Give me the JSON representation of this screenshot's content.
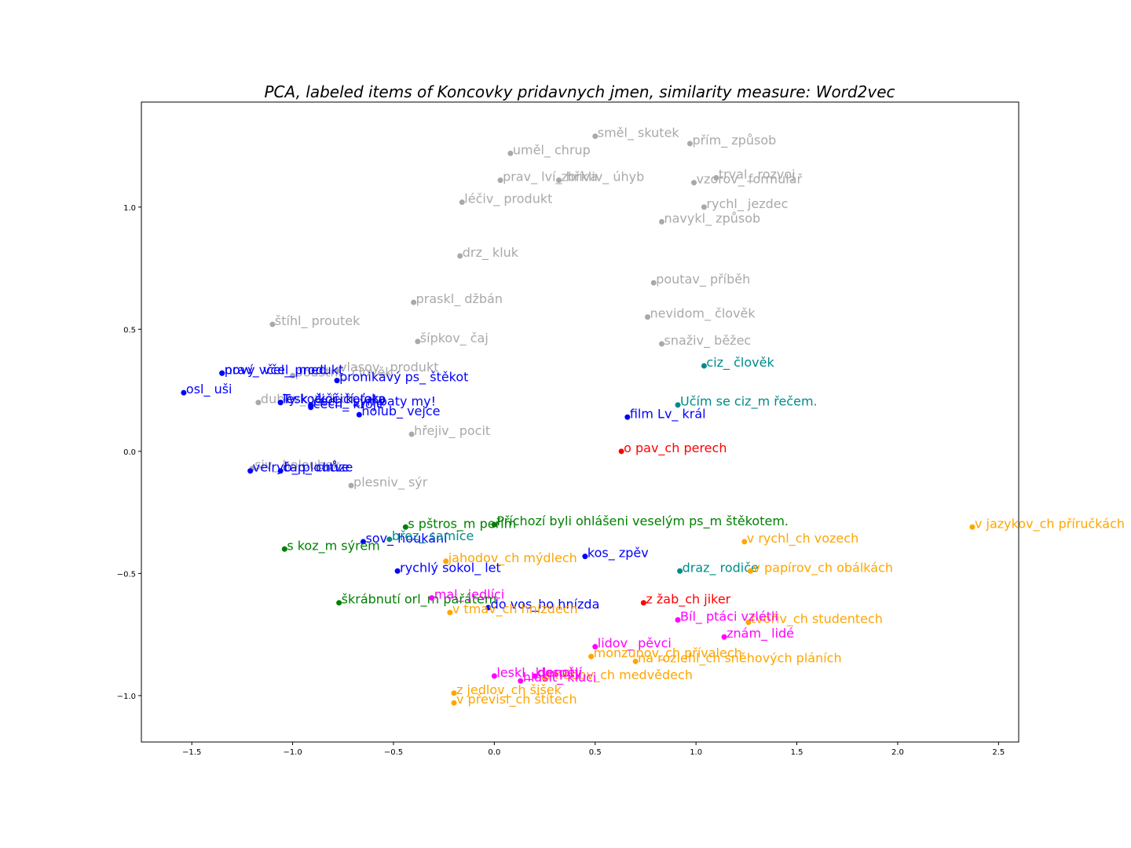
{
  "chart_data": {
    "type": "scatter",
    "title": "PCA, labeled items of Koncovky pridavnych jmen, similarity measure: Word2vec",
    "xlabel": "",
    "ylabel": "",
    "xlim": [
      -1.75,
      2.6
    ],
    "ylim": [
      -1.19,
      1.43
    ],
    "xticks": [
      -1.5,
      -1.0,
      -0.5,
      0.0,
      0.5,
      1.0,
      1.5,
      2.0,
      2.5
    ],
    "xtick_labels": [
      "−1.5",
      "−1.0",
      "−0.5",
      "0.0",
      "0.5",
      "1.0",
      "1.5",
      "2.0",
      "2.5"
    ],
    "yticks": [
      -1.0,
      -0.5,
      0.0,
      0.5,
      1.0
    ],
    "ytick_labels": [
      "−1.0",
      "−0.5",
      "0.0",
      "0.5",
      "1.0"
    ],
    "grid": false,
    "colors": {
      "gray": "#a9a9a9",
      "blue": "#0000ff",
      "teal": "#008b8b",
      "red": "#ff0000",
      "green": "#008000",
      "orange": "#ffa500",
      "magenta": "#ff00ff"
    },
    "points": [
      {
        "label": "směl_ skutek",
        "x": 0.5,
        "y": 1.29,
        "color": "gray"
      },
      {
        "label": "přím_ způsob",
        "x": 0.97,
        "y": 1.26,
        "color": "gray"
      },
      {
        "label": "uměl_ chrup",
        "x": 0.08,
        "y": 1.22,
        "color": "gray"
      },
      {
        "label": "prav_ lví_ hříva",
        "x": 0.03,
        "y": 1.11,
        "color": "gray"
      },
      {
        "label": "zbrkliv_ úhyb",
        "x": 0.32,
        "y": 1.11,
        "color": "gray"
      },
      {
        "label": "trval_ rozvoj",
        "x": 1.1,
        "y": 1.12,
        "color": "gray"
      },
      {
        "label": "vzorov_ formulář",
        "x": 0.99,
        "y": 1.1,
        "color": "gray"
      },
      {
        "label": "léčiv_ produkt",
        "x": -0.16,
        "y": 1.02,
        "color": "gray"
      },
      {
        "label": "rychl_ jezdec",
        "x": 1.04,
        "y": 1.0,
        "color": "gray"
      },
      {
        "label": "navykl_ způsob",
        "x": 0.83,
        "y": 0.94,
        "color": "gray"
      },
      {
        "label": "drz_ kluk",
        "x": -0.17,
        "y": 0.8,
        "color": "gray"
      },
      {
        "label": "poutav_ příběh",
        "x": 0.79,
        "y": 0.69,
        "color": "gray"
      },
      {
        "label": "praskl_ džbán",
        "x": -0.4,
        "y": 0.61,
        "color": "gray"
      },
      {
        "label": "štíhl_ proutek",
        "x": -1.1,
        "y": 0.52,
        "color": "gray"
      },
      {
        "label": "nevidom_ člověk",
        "x": 0.76,
        "y": 0.55,
        "color": "gray"
      },
      {
        "label": "šípkov_ čaj",
        "x": -0.38,
        "y": 0.45,
        "color": "gray"
      },
      {
        "label": "snaživ_ běžec",
        "x": 0.83,
        "y": 0.44,
        "color": "gray"
      },
      {
        "label": "vlasov_ produkt",
        "x": -0.78,
        "y": 0.33,
        "color": "gray"
      },
      {
        "label": "pouštní_ člověk",
        "x": -1.0,
        "y": 0.31,
        "color": "gray"
      },
      {
        "label": "dubov_ vydech",
        "x": -1.17,
        "y": 0.2,
        "color": "gray"
      },
      {
        "label": "hřejiv_ pocit",
        "x": -0.41,
        "y": 0.07,
        "color": "gray"
      },
      {
        "label": "siv_ holoubek",
        "x": -1.2,
        "y": -0.07,
        "color": "gray"
      },
      {
        "label": "plesniv_ sýr",
        "x": -0.71,
        "y": -0.14,
        "color": "gray"
      },
      {
        "label": "prav_ včel_ med",
        "x": -1.35,
        "y": 0.32,
        "color": "blue"
      },
      {
        "label": "nový včel_ produkt",
        "x": -1.35,
        "y": 0.32,
        "color": "blue"
      },
      {
        "label": "pronikavý ps_ štěkot",
        "x": -0.78,
        "y": 0.29,
        "color": "blue"
      },
      {
        "label": "osl_ uši",
        "x": -1.54,
        "y": 0.24,
        "color": "blue"
      },
      {
        "label": "Ty kočičí_ koťata",
        "x": -1.06,
        "y": 0.2,
        "color": "blue"
      },
      {
        "label": "lesk_ kočičí_ oko",
        "x": -1.06,
        "y": 0.2,
        "color": "blue"
      },
      {
        "label": "čech_ sympaty my!",
        "x": -0.91,
        "y": 0.19,
        "color": "blue"
      },
      {
        "label": "čech_ kroje",
        "x": -0.91,
        "y": 0.18,
        "color": "blue"
      },
      {
        "label": "holub_ vejce",
        "x": -0.67,
        "y": 0.15,
        "color": "blue"
      },
      {
        "label": "film Lv_ král",
        "x": 0.66,
        "y": 0.14,
        "color": "blue"
      },
      {
        "label": "velryb_ ploutve",
        "x": -1.21,
        "y": -0.08,
        "color": "blue"
      },
      {
        "label": "čap_ chůze",
        "x": -1.06,
        "y": -0.08,
        "color": "blue"
      },
      {
        "label": "sov_ houkání",
        "x": -0.65,
        "y": -0.37,
        "color": "blue"
      },
      {
        "label": "kos_ zpěv",
        "x": 0.45,
        "y": -0.43,
        "color": "blue"
      },
      {
        "label": "rychlý sokol_ let",
        "x": -0.48,
        "y": -0.49,
        "color": "blue"
      },
      {
        "label": "do vos_ho hnízda",
        "x": -0.03,
        "y": -0.64,
        "color": "blue"
      },
      {
        "label": "ciz_ člověk",
        "x": 1.04,
        "y": 0.35,
        "color": "teal"
      },
      {
        "label": "Učím se ciz_m řečem.",
        "x": 0.91,
        "y": 0.19,
        "color": "teal"
      },
      {
        "label": "břez_ samice",
        "x": -0.52,
        "y": -0.36,
        "color": "teal"
      },
      {
        "label": "draz_ rodiče",
        "x": 0.92,
        "y": -0.49,
        "color": "teal"
      },
      {
        "label": "o pav_ch perech",
        "x": 0.63,
        "y": 0.0,
        "color": "red"
      },
      {
        "label": "z žab_ch jiker",
        "x": 0.74,
        "y": -0.62,
        "color": "red"
      },
      {
        "label": "s pštros_m peřím",
        "x": -0.44,
        "y": -0.31,
        "color": "green"
      },
      {
        "label": "Příchozí byli ohlášeni veselým ps_m štěkotem.",
        "x": 0.0,
        "y": -0.3,
        "color": "green"
      },
      {
        "label": "s koz_m sýrem",
        "x": -1.04,
        "y": -0.4,
        "color": "green"
      },
      {
        "label": "škrábnutí orl_m pařátem",
        "x": -0.77,
        "y": -0.62,
        "color": "green"
      },
      {
        "label": "v jazykov_ch příručkách",
        "x": 2.37,
        "y": -0.31,
        "color": "orange"
      },
      {
        "label": "v rychl_ch vozech",
        "x": 1.24,
        "y": -0.37,
        "color": "orange"
      },
      {
        "label": "jahodov_ch mýdlech",
        "x": -0.24,
        "y": -0.45,
        "color": "orange"
      },
      {
        "label": "v papírov_ch obálkách",
        "x": 1.27,
        "y": -0.49,
        "color": "orange"
      },
      {
        "label": "v tmav_ch hnízdech",
        "x": -0.22,
        "y": -0.66,
        "color": "orange"
      },
      {
        "label": "tvořiv_ch studentech",
        "x": 1.26,
        "y": -0.7,
        "color": "orange"
      },
      {
        "label": "monzunov_ch přívalech",
        "x": 0.48,
        "y": -0.84,
        "color": "orange"
      },
      {
        "label": "na rozlehl_ch sněhových pláních",
        "x": 0.7,
        "y": -0.86,
        "color": "orange"
      },
      {
        "label": "hnědov_ch medvědech",
        "x": 0.25,
        "y": -0.93,
        "color": "orange"
      },
      {
        "label": "z jedlov_ch šišek",
        "x": -0.2,
        "y": -0.99,
        "color": "orange"
      },
      {
        "label": "v převisl_ch štítech",
        "x": -0.2,
        "y": -1.03,
        "color": "orange"
      },
      {
        "label": "mal_ jedlíci",
        "x": -0.31,
        "y": -0.6,
        "color": "magenta"
      },
      {
        "label": "Bíl_ ptáci vzlétli",
        "x": 0.91,
        "y": -0.69,
        "color": "magenta"
      },
      {
        "label": "znám_ lidé",
        "x": 1.14,
        "y": -0.76,
        "color": "magenta"
      },
      {
        "label": "lidov_ pěvci",
        "x": 0.5,
        "y": -0.8,
        "color": "magenta"
      },
      {
        "label": "leskl_ klenoty",
        "x": 0.0,
        "y": -0.92,
        "color": "magenta"
      },
      {
        "label": "hlasit_ kluci",
        "x": 0.13,
        "y": -0.94,
        "color": "magenta"
      },
      {
        "label": "dospělí",
        "x": 0.2,
        "y": -0.92,
        "color": "magenta"
      }
    ]
  }
}
